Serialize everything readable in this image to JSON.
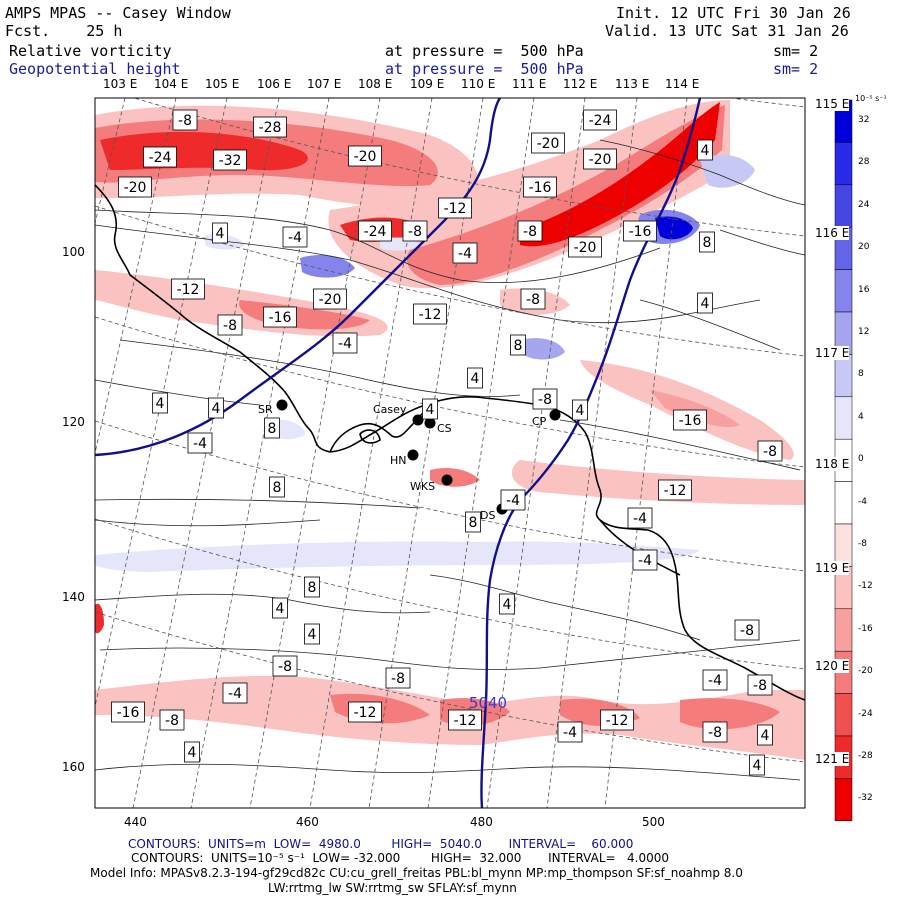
{
  "header": {
    "left1": "AMPS MPAS -- Casey Window",
    "left2": "Fcst.    25 h",
    "right1": "Init. 12 UTC Fri 30 Jan 26",
    "right2": "Valid. 13 UTC Sat 31 Jan 26",
    "var1": "Relative vorticity",
    "var2": "Geopotential height",
    "press1": "at pressure =  500 hPa",
    "press2": "at pressure =  500 hPa",
    "sm1": "sm= 2",
    "sm2": "sm= 2"
  },
  "lon_labels": [
    "103 E",
    "104 E",
    "105 E",
    "106 E",
    "107 E",
    "108 E",
    "109 E",
    "110 E",
    "111 E",
    "112 E",
    "113 E",
    "114 E"
  ],
  "lat_labels": [
    "115 E",
    "116 E",
    "117 E",
    "118 E",
    "119 E",
    "120 E",
    "121 E"
  ],
  "y_axis": [
    "100",
    "120",
    "140",
    "160"
  ],
  "x_axis": [
    "440",
    "460",
    "480",
    "500"
  ],
  "colorbar": {
    "unit": "10⁻⁵ s⁻¹",
    "ticks": [
      "32",
      "28",
      "24",
      "20",
      "16",
      "12",
      "8",
      "4",
      "0",
      "-4",
      "-8",
      "-12",
      "-16",
      "-20",
      "-24",
      "-28",
      "-32"
    ],
    "colors": [
      "#0000dd",
      "#2a2ae8",
      "#4646e6",
      "#6464e8",
      "#8484ec",
      "#a6a6f0",
      "#c8c8f6",
      "#e6e6fb",
      "#ffffff",
      "#ffffff",
      "#fde0e0",
      "#fbc2c2",
      "#f8a0a0",
      "#f47c7c",
      "#f05050",
      "#ee2a2a",
      "#ee0000"
    ]
  },
  "stations": [
    {
      "label": "SR"
    },
    {
      "label": "Casey"
    },
    {
      "label": "CS"
    },
    {
      "label": "HN"
    },
    {
      "label": "WKS"
    },
    {
      "label": "DS"
    },
    {
      "label": "CP"
    }
  ],
  "contour_labels": [
    "-8",
    "-28",
    "-24",
    "-32",
    "-20",
    "-20",
    "-24",
    "-20",
    "-20",
    "-16",
    "-12",
    "-24",
    "-8",
    "-4",
    "-8",
    "-20",
    "-16",
    "-4",
    "4",
    "4",
    "-12",
    "-20",
    "-8",
    "-16",
    "-4",
    "8",
    "8",
    "-12",
    "-8",
    "4",
    "4",
    "-8",
    "4",
    "8",
    "4",
    "-16",
    "4",
    "-8",
    "-12",
    "-4",
    "4",
    "8",
    "8",
    "-4",
    "8",
    "4",
    "4",
    "4",
    "-4",
    "-4",
    "-8",
    "-8",
    "-4",
    "-16",
    "-8",
    "-12",
    "-8",
    "-12",
    "-4",
    "-12",
    "-4",
    "-8",
    "-8",
    "4",
    "4",
    "4"
  ],
  "height_label": "5040",
  "footer": {
    "line1": "CONTOURS:  UNITS=m  LOW=  4980.0        HIGH=  5040.0       INTERVAL=    60.000",
    "line2": "CONTOURS:  UNITS=10⁻⁵ s⁻¹  LOW= -32.000        HIGH=  32.000       INTERVAL=   4.0000",
    "line3": "Model Info: MPASv8.2.3-194-gf29cd82c CU:cu_grell_freitas PBL:bl_mynn MP:mp_thompson SF:sf_noahmp 8.0",
    "line4": "LW:rrtmg_lw SW:rrtmg_sw SFLAY:sf_mynn"
  }
}
